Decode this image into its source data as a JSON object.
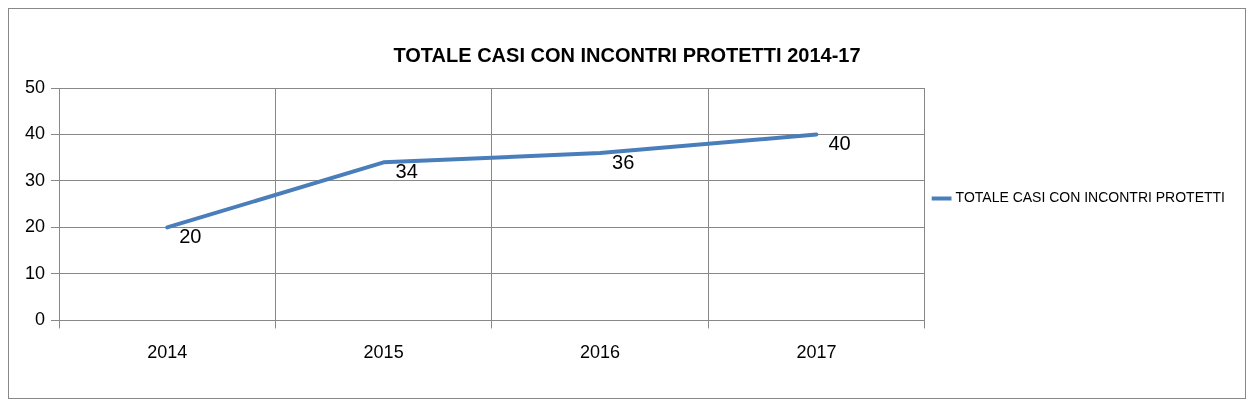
{
  "chart_data": {
    "type": "line",
    "title": "TOTALE CASI CON INCONTRI PROTETTI 2014-17",
    "categories": [
      "2014",
      "2015",
      "2016",
      "2017"
    ],
    "series": [
      {
        "name": "TOTALE CASI CON INCONTRI PROTETTI",
        "color": "#4a7ebb",
        "values": [
          20,
          34,
          36,
          40
        ]
      }
    ],
    "ylim": [
      0,
      50
    ],
    "yticks": [
      0,
      10,
      20,
      30,
      40,
      50
    ],
    "grid": true,
    "legend": "right",
    "marker": "none",
    "line_style": "solid",
    "data_labels": true
  }
}
